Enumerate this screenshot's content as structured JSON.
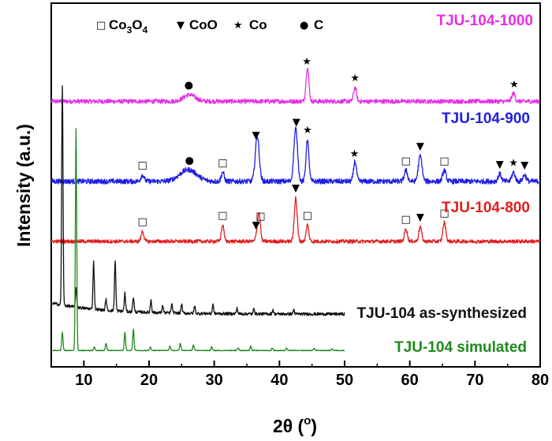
{
  "chart_data": {
    "type": "line",
    "title": "",
    "xlabel": "2θ (°)",
    "xlabel_base": "2θ (",
    "xlabel_sup": "o",
    "xlabel_close": ")",
    "ylabel": "Intensity (a.u.)",
    "xlim": [
      5,
      80
    ],
    "xticks": [
      10,
      20,
      30,
      40,
      50,
      60,
      70,
      80
    ],
    "xtick_labels": [
      "10",
      "20",
      "30",
      "40",
      "50",
      "60",
      "70",
      "80"
    ],
    "legend": [
      {
        "symbol": "□",
        "label": "Co",
        "sub1": "3",
        "mid": "O",
        "sub2": "4",
        "phase": "Co3O4"
      },
      {
        "symbol": "▼",
        "label": "CoO",
        "phase": "CoO"
      },
      {
        "symbol": "★",
        "label": "Co",
        "phase": "Co"
      },
      {
        "symbol": "●",
        "label": "C",
        "phase": "C"
      }
    ],
    "series": [
      {
        "name": "TJU-104-1000",
        "color": "#e52fe5",
        "baseline": 0.73,
        "x_range": [
          5,
          80
        ],
        "noise": 0.006,
        "peaks": [
          {
            "x": 26.2,
            "h": 0.018,
            "w": 0.9
          },
          {
            "x": 44.3,
            "h": 0.093,
            "w": 0.22
          },
          {
            "x": 51.6,
            "h": 0.038,
            "w": 0.22
          },
          {
            "x": 75.9,
            "h": 0.022,
            "w": 0.25
          }
        ],
        "markers": [
          {
            "x": 26.1,
            "phase": "C"
          },
          {
            "x": 44.2,
            "phase": "Co"
          },
          {
            "x": 51.6,
            "phase": "Co"
          },
          {
            "x": 76.0,
            "phase": "Co"
          }
        ]
      },
      {
        "name": "TJU-104-900",
        "color": "#1f1fe0",
        "baseline": 0.51,
        "x_range": [
          5,
          80
        ],
        "noise": 0.007,
        "peaks": [
          {
            "x": 19.0,
            "h": 0.018,
            "w": 0.25
          },
          {
            "x": 26.0,
            "h": 0.032,
            "w": 1.3
          },
          {
            "x": 31.3,
            "h": 0.025,
            "w": 0.22
          },
          {
            "x": 36.6,
            "h": 0.125,
            "w": 0.3
          },
          {
            "x": 42.5,
            "h": 0.145,
            "w": 0.28
          },
          {
            "x": 44.3,
            "h": 0.115,
            "w": 0.22
          },
          {
            "x": 51.6,
            "h": 0.055,
            "w": 0.22
          },
          {
            "x": 59.4,
            "h": 0.03,
            "w": 0.25
          },
          {
            "x": 61.6,
            "h": 0.07,
            "w": 0.28
          },
          {
            "x": 65.3,
            "h": 0.03,
            "w": 0.25
          },
          {
            "x": 73.8,
            "h": 0.02,
            "w": 0.25
          },
          {
            "x": 75.9,
            "h": 0.025,
            "w": 0.25
          },
          {
            "x": 77.6,
            "h": 0.018,
            "w": 0.25
          }
        ],
        "markers": [
          {
            "x": 19.0,
            "phase": "Co3O4"
          },
          {
            "x": 26.2,
            "phase": "C"
          },
          {
            "x": 31.3,
            "phase": "Co3O4"
          },
          {
            "x": 36.4,
            "phase": "CoO"
          },
          {
            "x": 42.6,
            "phase": "CoO"
          },
          {
            "x": 44.3,
            "phase": "Co"
          },
          {
            "x": 51.5,
            "phase": "Co"
          },
          {
            "x": 59.4,
            "phase": "Co3O4"
          },
          {
            "x": 61.6,
            "phase": "CoO"
          },
          {
            "x": 65.3,
            "phase": "Co3O4"
          },
          {
            "x": 73.8,
            "phase": "CoO"
          },
          {
            "x": 75.9,
            "phase": "Co"
          },
          {
            "x": 77.6,
            "phase": "CoO"
          }
        ]
      },
      {
        "name": "TJU-104-800",
        "color": "#e01f1f",
        "baseline": 0.345,
        "x_range": [
          5,
          80
        ],
        "noise": 0.005,
        "peaks": [
          {
            "x": 19.0,
            "h": 0.028,
            "w": 0.2
          },
          {
            "x": 31.3,
            "h": 0.045,
            "w": 0.2
          },
          {
            "x": 36.6,
            "h": 0.025,
            "w": 0.2
          },
          {
            "x": 36.9,
            "h": 0.07,
            "w": 0.2
          },
          {
            "x": 42.5,
            "h": 0.12,
            "w": 0.22
          },
          {
            "x": 44.3,
            "h": 0.045,
            "w": 0.2
          },
          {
            "x": 59.4,
            "h": 0.035,
            "w": 0.22
          },
          {
            "x": 61.6,
            "h": 0.04,
            "w": 0.22
          },
          {
            "x": 65.3,
            "h": 0.052,
            "w": 0.22
          }
        ],
        "markers": [
          {
            "x": 19.0,
            "phase": "Co3O4"
          },
          {
            "x": 31.3,
            "phase": "Co3O4"
          },
          {
            "x": 36.4,
            "phase": "CoO"
          },
          {
            "x": 37.1,
            "phase": "Co3O4"
          },
          {
            "x": 42.5,
            "phase": "CoO"
          },
          {
            "x": 44.3,
            "phase": "Co3O4"
          },
          {
            "x": 59.4,
            "phase": "Co3O4"
          },
          {
            "x": 61.6,
            "phase": "CoO"
          },
          {
            "x": 65.3,
            "phase": "Co3O4"
          }
        ]
      },
      {
        "name": "TJU-104 as-synthesized",
        "color": "#111111",
        "baseline": 0.145,
        "x_range": [
          5.2,
          50
        ],
        "noise": 0.004,
        "decay": {
          "h": 0.03,
          "tau": 8
        },
        "peaks": [
          {
            "x": 6.7,
            "h": 0.6,
            "w": 0.1
          },
          {
            "x": 8.8,
            "h": 0.05,
            "w": 0.1
          },
          {
            "x": 11.5,
            "h": 0.13,
            "w": 0.1
          },
          {
            "x": 13.4,
            "h": 0.03,
            "w": 0.1
          },
          {
            "x": 14.8,
            "h": 0.14,
            "w": 0.1
          },
          {
            "x": 16.3,
            "h": 0.05,
            "w": 0.1
          },
          {
            "x": 17.6,
            "h": 0.04,
            "w": 0.1
          },
          {
            "x": 20.3,
            "h": 0.035,
            "w": 0.1
          },
          {
            "x": 22.1,
            "h": 0.02,
            "w": 0.1
          },
          {
            "x": 23.5,
            "h": 0.025,
            "w": 0.1
          },
          {
            "x": 25.0,
            "h": 0.025,
            "w": 0.1
          },
          {
            "x": 27.0,
            "h": 0.02,
            "w": 0.1
          },
          {
            "x": 29.8,
            "h": 0.025,
            "w": 0.1
          },
          {
            "x": 33.5,
            "h": 0.015,
            "w": 0.1
          },
          {
            "x": 36.1,
            "h": 0.015,
            "w": 0.1
          },
          {
            "x": 39.0,
            "h": 0.012,
            "w": 0.1
          },
          {
            "x": 42.2,
            "h": 0.012,
            "w": 0.1
          }
        ],
        "markers": []
      },
      {
        "name": "TJU-104 simulated",
        "color": "#1f8a1f",
        "baseline": 0.045,
        "x_range": [
          5.2,
          50
        ],
        "noise": 0.001,
        "peaks": [
          {
            "x": 6.7,
            "h": 0.05,
            "w": 0.1
          },
          {
            "x": 8.8,
            "h": 0.61,
            "w": 0.1
          },
          {
            "x": 11.6,
            "h": 0.01,
            "w": 0.1
          },
          {
            "x": 13.4,
            "h": 0.02,
            "w": 0.1
          },
          {
            "x": 16.3,
            "h": 0.05,
            "w": 0.1
          },
          {
            "x": 17.6,
            "h": 0.058,
            "w": 0.1
          },
          {
            "x": 20.2,
            "h": 0.01,
            "w": 0.1
          },
          {
            "x": 23.2,
            "h": 0.012,
            "w": 0.1
          },
          {
            "x": 24.8,
            "h": 0.02,
            "w": 0.1
          },
          {
            "x": 26.8,
            "h": 0.015,
            "w": 0.1
          },
          {
            "x": 29.6,
            "h": 0.01,
            "w": 0.1
          },
          {
            "x": 33.7,
            "h": 0.008,
            "w": 0.1
          },
          {
            "x": 35.6,
            "h": 0.012,
            "w": 0.1
          },
          {
            "x": 38.9,
            "h": 0.007,
            "w": 0.1
          },
          {
            "x": 41.1,
            "h": 0.007,
            "w": 0.1
          },
          {
            "x": 45.3,
            "h": 0.006,
            "w": 0.1
          },
          {
            "x": 48.1,
            "h": 0.005,
            "w": 0.1
          }
        ],
        "markers": []
      }
    ]
  }
}
